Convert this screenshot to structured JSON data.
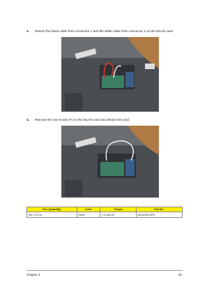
{
  "steps": [
    {
      "number": "3.",
      "text": "Detach the black cable from connector 1 and the white cable from connector 2 on the WLAN card."
    },
    {
      "number": "4.",
      "text": "Remove the one screw (F) on the WLAN card and detach the card."
    }
  ],
  "table": {
    "headers": [
      "Size (Quantity)",
      "Color",
      "Torque",
      "Part No."
    ],
    "rows": [
      [
        "M2 x L6 (1)",
        "Silver",
        "1.6 kgf-cm",
        "86.9A552.4R0"
      ]
    ]
  },
  "footer": {
    "chapter": "Chapter 3",
    "page": "45"
  }
}
